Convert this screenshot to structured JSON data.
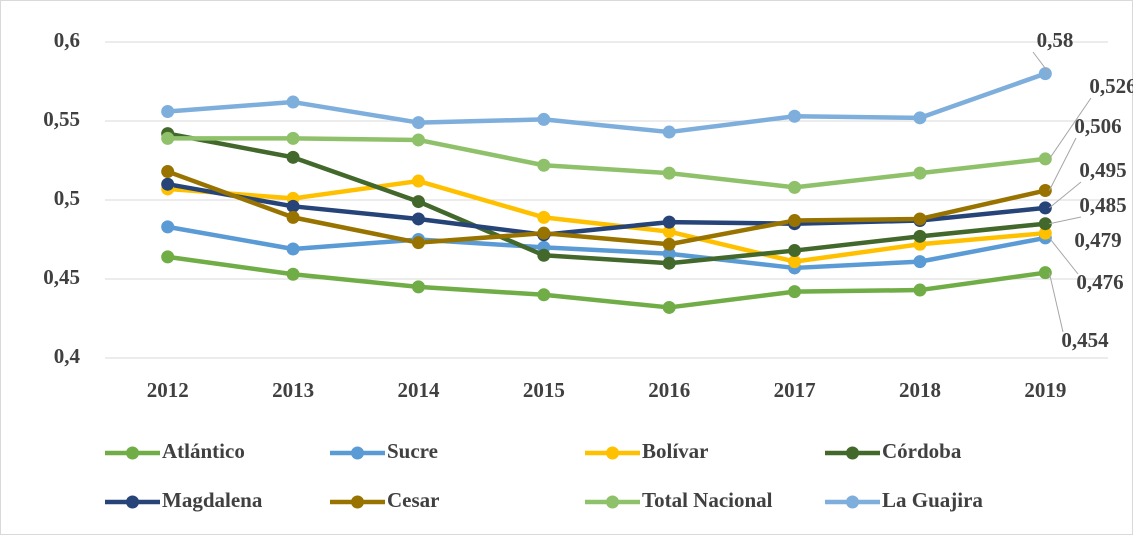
{
  "chart_data": {
    "type": "line",
    "categories": [
      "2012",
      "2013",
      "2014",
      "2015",
      "2016",
      "2017",
      "2018",
      "2019"
    ],
    "series": [
      {
        "name": "Atlántico",
        "color": "#70ad47",
        "values": [
          0.464,
          0.453,
          0.445,
          0.44,
          0.432,
          0.442,
          0.443,
          0.454
        ],
        "value_labels": [
          null,
          null,
          null,
          null,
          null,
          null,
          null,
          "0,454"
        ]
      },
      {
        "name": "Sucre",
        "color": "#5b9bd5",
        "values": [
          0.483,
          0.469,
          0.475,
          0.47,
          0.466,
          0.457,
          0.461,
          0.476
        ],
        "value_labels": [
          null,
          null,
          null,
          null,
          null,
          null,
          null,
          "0,476"
        ]
      },
      {
        "name": "Bolívar",
        "color": "#ffc000",
        "values": [
          0.507,
          0.501,
          0.512,
          0.489,
          0.48,
          0.461,
          0.472,
          0.479
        ],
        "value_labels": [
          null,
          null,
          null,
          null,
          null,
          null,
          null,
          "0,479"
        ]
      },
      {
        "name": "Córdoba",
        "color": "#43682b",
        "values": [
          0.542,
          0.527,
          0.499,
          0.465,
          0.46,
          0.468,
          0.477,
          0.485
        ],
        "value_labels": [
          null,
          null,
          null,
          null,
          null,
          null,
          null,
          "0,485"
        ]
      },
      {
        "name": "Magdalena",
        "color": "#264478",
        "values": [
          0.51,
          0.496,
          0.488,
          0.478,
          0.486,
          0.485,
          0.487,
          0.495
        ],
        "value_labels": [
          null,
          null,
          null,
          null,
          null,
          null,
          null,
          "0,495"
        ]
      },
      {
        "name": "Cesar",
        "color": "#997300",
        "values": [
          0.518,
          0.489,
          0.473,
          0.479,
          0.472,
          0.487,
          0.488,
          0.506
        ],
        "value_labels": [
          null,
          null,
          null,
          null,
          null,
          null,
          null,
          "0,506"
        ]
      },
      {
        "name": "Total Nacional",
        "color": "#8fc16a",
        "values": [
          0.539,
          0.539,
          0.538,
          0.522,
          0.517,
          0.508,
          0.517,
          0.526
        ],
        "value_labels": [
          null,
          null,
          null,
          null,
          null,
          null,
          null,
          "0,526"
        ]
      },
      {
        "name": "La Guajira",
        "color": "#7eaedc",
        "values": [
          0.556,
          0.562,
          0.549,
          0.551,
          0.543,
          0.553,
          0.552,
          0.58
        ],
        "value_labels": [
          null,
          null,
          null,
          null,
          null,
          null,
          null,
          "0,58"
        ]
      }
    ],
    "ylim": [
      0.4,
      0.6
    ],
    "yticks": [
      {
        "value": 0.4,
        "label": "0,4"
      },
      {
        "value": 0.45,
        "label": "0,45"
      },
      {
        "value": 0.5,
        "label": "0,5"
      },
      {
        "value": 0.55,
        "label": "0,55"
      },
      {
        "value": 0.6,
        "label": "0,6"
      }
    ],
    "grid": true,
    "legend": "bottom"
  }
}
